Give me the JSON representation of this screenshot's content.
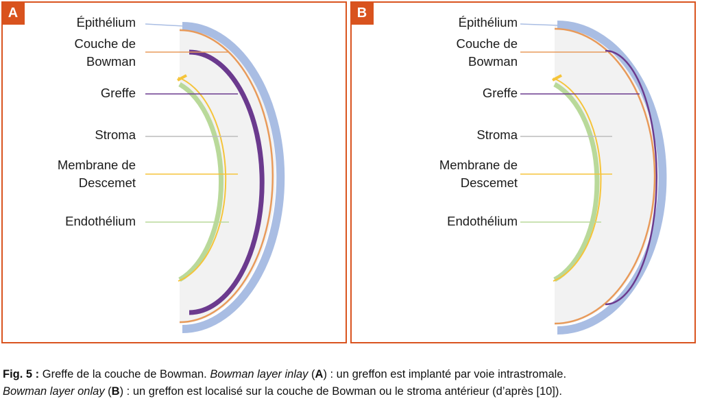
{
  "colors": {
    "frame": "#d9531e",
    "epithelium": "#a9bde3",
    "bowman": "#e89a5a",
    "graft": "#6b3a8e",
    "stroma": "#f2f2f2",
    "descemet": "#f5c43a",
    "endothelium": "#b9d99a"
  },
  "panels": [
    {
      "id": "A",
      "badge": "A",
      "labels": {
        "epithelium": "Épithélium",
        "bowman": "Couche de\nBowman",
        "graft": "Greffe",
        "stroma": "Stroma",
        "descemet": "Membrane de\nDescemet",
        "endothelium": "Endothélium"
      }
    },
    {
      "id": "B",
      "badge": "B",
      "labels": {
        "epithelium": "Épithélium",
        "bowman": "Couche de\nBowman",
        "graft": "Greffe",
        "stroma": "Stroma",
        "descemet": "Membrane de\nDescemet",
        "endothelium": "Endothélium"
      }
    }
  ],
  "caption": {
    "fig": "Fig. 5 :",
    "line1_a": " Greffe de la couche de Bowman. ",
    "inlay": "Bowman layer inlay",
    "paren_open": " (",
    "bold_a": "A",
    "line1_b": ") : un greffon est implanté par voie intrastromale.",
    "onlay": "Bowman layer onlay",
    "bold_b": "B",
    "line2_b": ") : un greffon est localisé sur la couche de Bowman ou le stroma antérieur (d’après [10])."
  }
}
